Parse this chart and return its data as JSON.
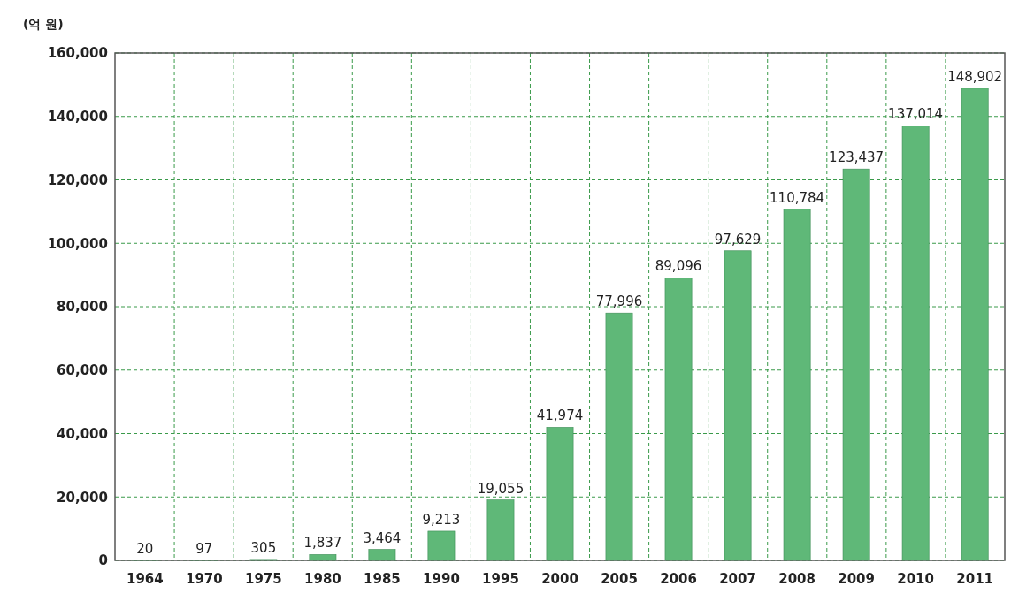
{
  "chart_data": {
    "type": "bar",
    "ylabel": "(억 원)",
    "categories": [
      "1964",
      "1970",
      "1975",
      "1980",
      "1985",
      "1990",
      "1995",
      "2000",
      "2005",
      "2006",
      "2007",
      "2008",
      "2009",
      "2010",
      "2011"
    ],
    "values": [
      20,
      97,
      305,
      1837,
      3464,
      9213,
      19055,
      41974,
      77996,
      89096,
      97629,
      110784,
      123437,
      137014,
      148902
    ],
    "color": "#5fb878",
    "ylim": [
      0,
      160000
    ],
    "yticks": [
      0,
      {
        "value": 20000,
        "label": "20,000"
      },
      {
        "value": 40000,
        "label": "40,000"
      },
      {
        "value": 60000,
        "label": "60,000"
      },
      {
        "value": 80000,
        "label": "80,000"
      },
      {
        "value": 100000,
        "label": "100,000"
      },
      {
        "value": 120000,
        "label": "120,000"
      },
      {
        "value": 140000,
        "label": "140,000"
      },
      {
        "value": 160000,
        "label": "160,000"
      }
    ],
    "value_labels": [
      "20",
      "97",
      "305",
      "1,837",
      "3,464",
      "9,213",
      "19,055",
      "41,974",
      "77,996",
      "89,096",
      "97,629",
      "110,784",
      "123,437",
      "137,014",
      "148,902"
    ],
    "grid": true
  }
}
